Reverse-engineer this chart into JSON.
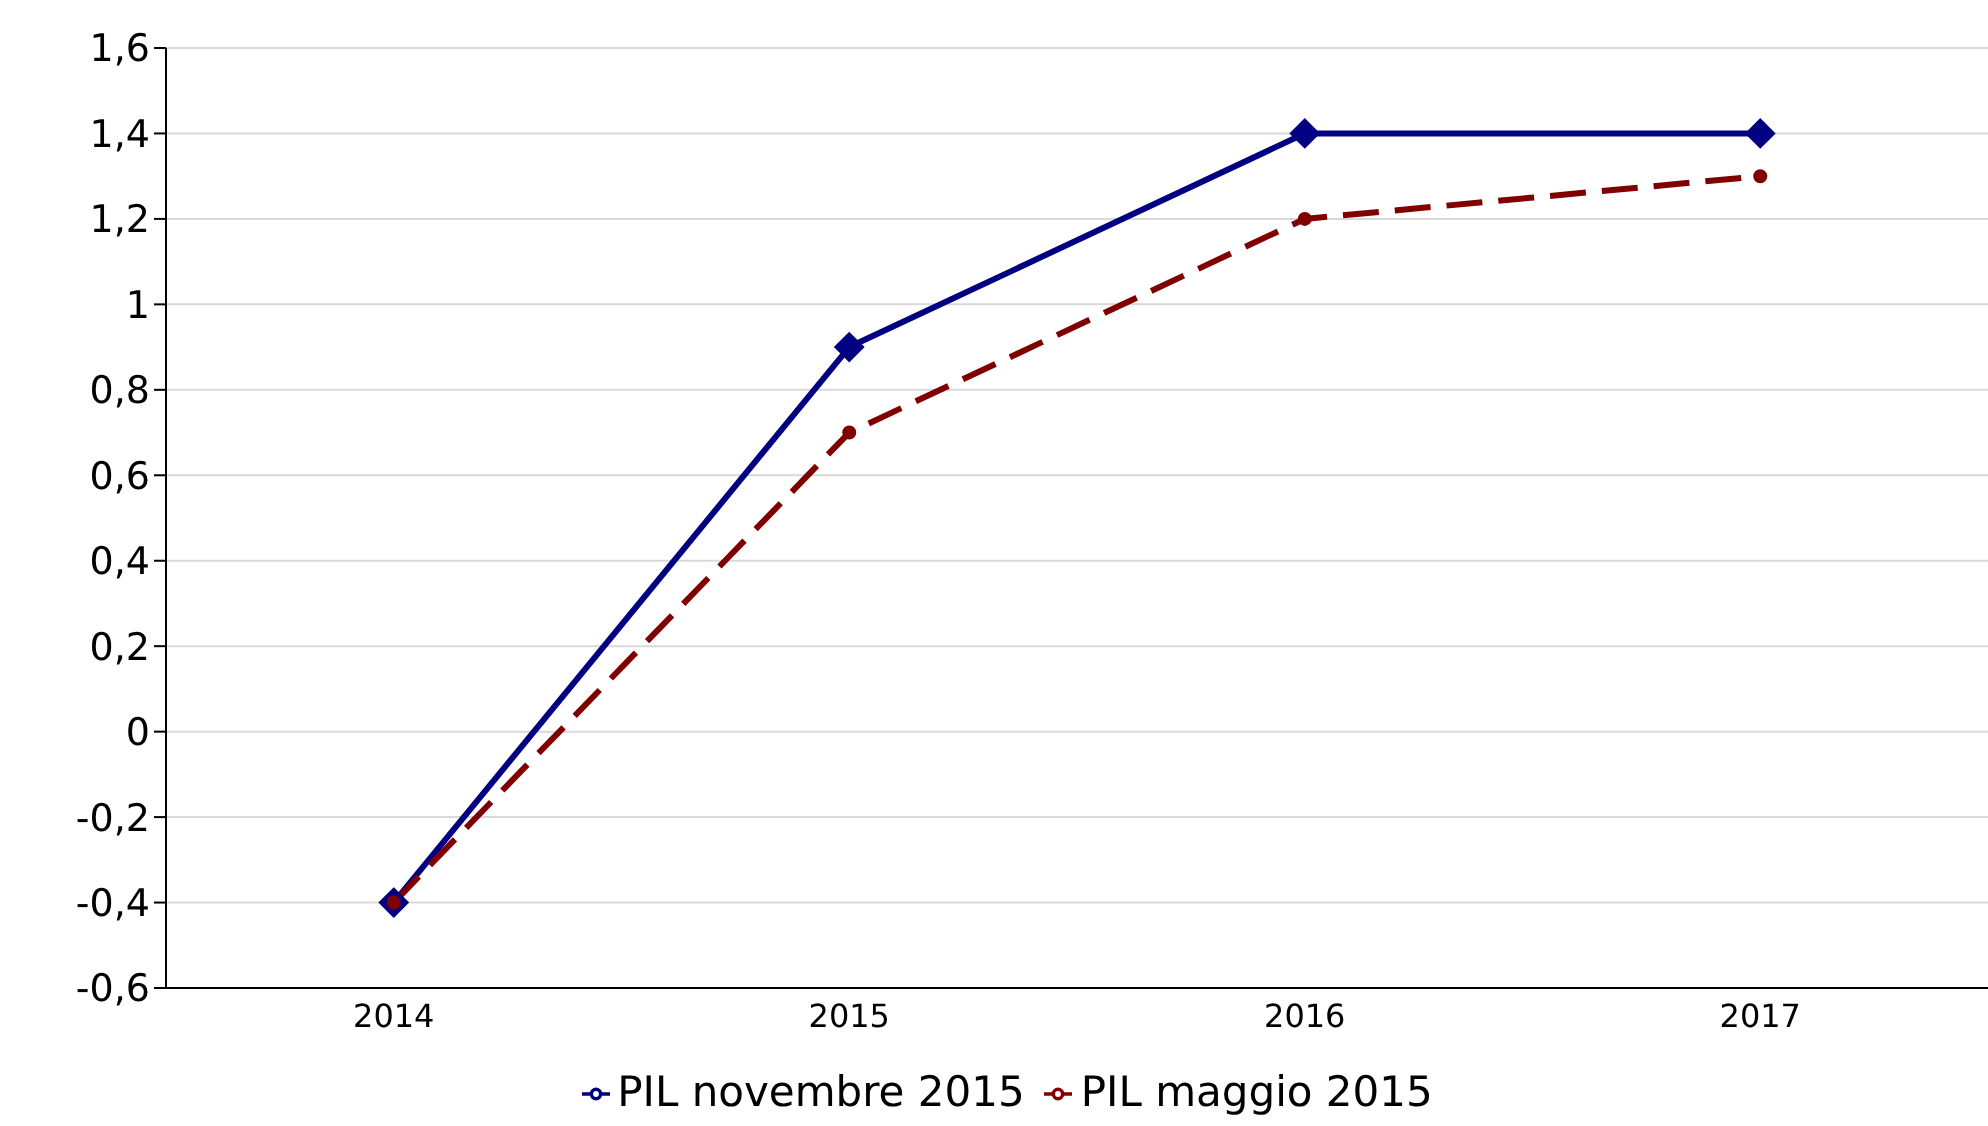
{
  "chart_data": {
    "type": "line",
    "categories": [
      "2014",
      "2015",
      "2016",
      "2017"
    ],
    "series": [
      {
        "name": "PIL novembre 2015",
        "color": "#000080",
        "values": [
          -0.4,
          0.9,
          1.4,
          1.4
        ],
        "marker": "diamond",
        "line_style": "solid"
      },
      {
        "name": "PIL maggio 2015",
        "color": "#800000",
        "values": [
          -0.4,
          0.7,
          1.2,
          1.3
        ],
        "marker": "circle",
        "line_style": "dashed"
      }
    ],
    "ylim": [
      -0.6,
      1.6
    ],
    "yticks": [
      {
        "value": -0.6,
        "label": "-0,6"
      },
      {
        "value": -0.4,
        "label": "-0,4"
      },
      {
        "value": -0.2,
        "label": "-0,2"
      },
      0,
      {
        "value": 0.2,
        "label": "0,2"
      },
      {
        "value": 0.4,
        "label": "0,4"
      },
      {
        "value": 0.6,
        "label": "0,6"
      },
      {
        "value": 0.8,
        "label": "0,8"
      },
      1,
      {
        "value": 1.2,
        "label": "1,2"
      },
      {
        "value": 1.4,
        "label": "1,4"
      },
      {
        "value": 1.6,
        "label": "1,6"
      }
    ],
    "grid": "y",
    "legend": "bottom"
  }
}
